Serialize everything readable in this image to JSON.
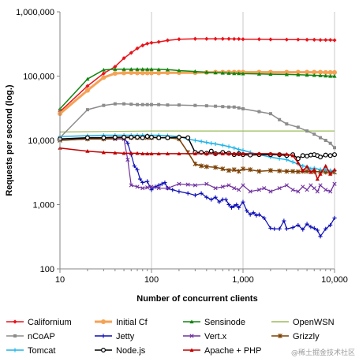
{
  "chart_data": {
    "type": "line",
    "title": "",
    "xlabel": "Number of concurrent clients",
    "ylabel": "Requests per second (log.)",
    "x_scale": "log",
    "y_scale": "log",
    "xlim": [
      10,
      10000
    ],
    "ylim": [
      100,
      1000000
    ],
    "x_ticks": [
      10,
      100,
      1000,
      10000
    ],
    "x_tick_labels": [
      "10",
      "100",
      "1,000",
      "10,000"
    ],
    "y_ticks": [
      100,
      1000,
      10000,
      100000,
      1000000
    ],
    "y_tick_labels": [
      "100",
      "1,000",
      "10,000",
      "100,000",
      "1,000,000"
    ],
    "grid": "vertical-major",
    "legend_position": "bottom",
    "watermark": "@稀土掘金技术社区",
    "series": [
      {
        "name": "Californium",
        "color": "#e8141b",
        "marker": "diamond",
        "width": 1.5,
        "x": [
          10,
          20,
          30,
          40,
          50,
          60,
          70,
          80,
          90,
          100,
          120,
          150,
          200,
          300,
          400,
          500,
          600,
          700,
          800,
          900,
          1000,
          1500,
          2000,
          3000,
          4000,
          5000,
          6000,
          7000,
          8000,
          9000,
          10000
        ],
        "y": [
          28000,
          70000,
          110000,
          140000,
          190000,
          230000,
          270000,
          300000,
          320000,
          330000,
          340000,
          360000,
          375000,
          380000,
          380000,
          380000,
          380000,
          380000,
          378000,
          378000,
          375000,
          375000,
          372000,
          370000,
          370000,
          368000,
          368000,
          365000,
          365000,
          365000,
          362000
        ]
      },
      {
        "name": "Initial Cf",
        "color": "#f5a255",
        "marker": "circle",
        "width": 3,
        "x": [
          10,
          20,
          30,
          40,
          50,
          60,
          70,
          80,
          90,
          100,
          120,
          150,
          200,
          300,
          400,
          500,
          600,
          700,
          800,
          900,
          1000,
          1500,
          2000,
          3000,
          4000,
          5000,
          6000,
          7000,
          8000,
          9000,
          10000
        ],
        "y": [
          26000,
          60000,
          95000,
          110000,
          112000,
          113000,
          112000,
          112000,
          112000,
          112000,
          112000,
          113000,
          113000,
          113000,
          114000,
          115000,
          115000,
          115000,
          115000,
          115000,
          115000,
          115000,
          115000,
          115000,
          115000,
          115000,
          115000,
          115000,
          114000,
          114000,
          114000
        ]
      },
      {
        "name": "Sensinode",
        "color": "#118511",
        "marker": "triangle",
        "width": 1.5,
        "x": [
          10,
          20,
          30,
          40,
          50,
          60,
          70,
          80,
          90,
          100,
          120,
          150,
          200,
          300,
          400,
          500,
          600,
          700,
          800,
          900,
          1000,
          1500,
          2000,
          3000,
          4000,
          5000,
          6000,
          7000,
          8000,
          9000,
          10000
        ],
        "y": [
          31000,
          90000,
          125000,
          128000,
          128000,
          128000,
          128000,
          128000,
          128000,
          128000,
          127000,
          126000,
          122000,
          118000,
          115000,
          113000,
          112000,
          111000,
          110000,
          110000,
          109000,
          108000,
          107000,
          106000,
          105000,
          104000,
          103000,
          102000,
          101000,
          100000,
          100000
        ]
      },
      {
        "name": "OpenWSN",
        "color": "#9bbb59",
        "marker": "none",
        "width": 1.2,
        "x": [
          10,
          100,
          1000,
          10000
        ],
        "y": [
          13500,
          14000,
          14000,
          14000
        ]
      },
      {
        "name": "nCoAP",
        "color": "#8c8c8c",
        "marker": "square",
        "width": 1.5,
        "x": [
          10,
          20,
          30,
          40,
          50,
          60,
          70,
          80,
          90,
          100,
          120,
          150,
          200,
          300,
          400,
          500,
          600,
          700,
          800,
          900,
          1000,
          1500,
          2000,
          2500,
          3000,
          4000,
          5000,
          6000,
          7000,
          8000,
          9000,
          10000
        ],
        "y": [
          11000,
          30000,
          35000,
          37000,
          37000,
          36500,
          36000,
          36000,
          36000,
          36000,
          36000,
          35500,
          35500,
          35000,
          34500,
          34000,
          33500,
          33000,
          33000,
          32000,
          31000,
          28000,
          26000,
          21000,
          18000,
          16000,
          14000,
          12500,
          11000,
          10000,
          9000,
          7700
        ]
      },
      {
        "name": "Jetty",
        "color": "#0b0bb5",
        "marker": "plus",
        "width": 1.2,
        "x": [
          10,
          20,
          30,
          40,
          50,
          55,
          60,
          65,
          70,
          75,
          80,
          90,
          100,
          110,
          120,
          130,
          140,
          150,
          170,
          200,
          250,
          300,
          350,
          400,
          450,
          500,
          550,
          600,
          650,
          700,
          750,
          800,
          850,
          900,
          1000,
          1100,
          1200,
          1300,
          1400,
          1500,
          1700,
          2000,
          2200,
          2500,
          2800,
          3000,
          3500,
          4000,
          4500,
          5000,
          5500,
          6000,
          6500,
          7000,
          8000,
          9000,
          10000
        ],
        "y": [
          10500,
          10800,
          11000,
          11000,
          11000,
          9000,
          6000,
          4000,
          3500,
          2500,
          2200,
          2300,
          1700,
          1900,
          2000,
          2100,
          2200,
          1800,
          1700,
          1600,
          1500,
          1400,
          1500,
          1300,
          1200,
          1300,
          1100,
          1200,
          1200,
          1000,
          900,
          950,
          1000,
          900,
          1100,
          800,
          700,
          750,
          680,
          700,
          620,
          430,
          420,
          420,
          560,
          420,
          440,
          480,
          410,
          500,
          450,
          430,
          400,
          320,
          420,
          480,
          620
        ]
      },
      {
        "name": "Vert.x",
        "color": "#7030a0",
        "marker": "x",
        "width": 1.2,
        "x": [
          10,
          20,
          30,
          40,
          50,
          55,
          60,
          70,
          80,
          90,
          100,
          120,
          150,
          200,
          250,
          300,
          400,
          500,
          600,
          700,
          800,
          900,
          1000,
          1200,
          1500,
          1700,
          2000,
          2500,
          3000,
          3500,
          4000,
          4500,
          5000,
          5500,
          6000,
          6500,
          7000,
          8000,
          9000,
          10000
        ],
        "y": [
          10000,
          10500,
          10500,
          10500,
          10500,
          5000,
          2000,
          1900,
          1800,
          1850,
          1900,
          1800,
          1800,
          2100,
          2050,
          2000,
          2100,
          1800,
          1900,
          2000,
          1800,
          1700,
          2000,
          1600,
          1700,
          1800,
          1600,
          1800,
          2000,
          1700,
          1600,
          1900,
          1700,
          2000,
          1800,
          1600,
          2000,
          1700,
          1600,
          2100
        ]
      },
      {
        "name": "Grizzly",
        "color": "#7b3f00",
        "marker": "star",
        "width": 1.5,
        "x": [
          10,
          20,
          30,
          40,
          50,
          60,
          70,
          80,
          90,
          100,
          120,
          150,
          200,
          250,
          300,
          350,
          400,
          500,
          600,
          700,
          800,
          900,
          1000,
          1200,
          1500,
          2000,
          2500,
          3000,
          3500,
          4000,
          4500,
          5000,
          6000,
          7000,
          8000,
          9000,
          10000
        ],
        "y": [
          10000,
          10500,
          10500,
          10800,
          11000,
          11000,
          11000,
          11000,
          11000,
          11000,
          11000,
          11000,
          10500,
          6500,
          4300,
          4000,
          3900,
          3800,
          3600,
          3400,
          3500,
          3300,
          3600,
          3500,
          3300,
          3400,
          3350,
          3300,
          3300,
          3250,
          3300,
          3300,
          3250,
          3250,
          3200,
          3200,
          3200
        ]
      },
      {
        "name": "Tomcat",
        "color": "#1fb4e8",
        "marker": "plus",
        "width": 1.5,
        "x": [
          10,
          20,
          30,
          40,
          50,
          60,
          70,
          80,
          90,
          100,
          120,
          150,
          200,
          250,
          300,
          350,
          400,
          450,
          500,
          600,
          700,
          800,
          900,
          1000,
          1200,
          1500,
          2000,
          2500,
          3000,
          3500,
          4000,
          4500,
          5000,
          5500,
          6000,
          7000,
          8000,
          9000,
          10000
        ],
        "y": [
          11500,
          11800,
          12000,
          12000,
          12000,
          12000,
          12000,
          12000,
          12000,
          12000,
          12000,
          11800,
          11500,
          10500,
          10000,
          9600,
          9300,
          9000,
          8800,
          8400,
          8000,
          7600,
          7200,
          7000,
          6500,
          6000,
          5500,
          5200,
          5000,
          4600,
          4300,
          4000,
          3900,
          3600,
          3700,
          3500,
          3500,
          3400,
          3400
        ]
      },
      {
        "name": "Node.js",
        "color": "#000000",
        "marker": "circle-open",
        "width": 1.5,
        "x": [
          10,
          20,
          30,
          40,
          50,
          60,
          70,
          80,
          90,
          100,
          120,
          150,
          200,
          250,
          300,
          350,
          400,
          450,
          500,
          600,
          700,
          800,
          900,
          1000,
          1200,
          1500,
          2000,
          2500,
          3000,
          3500,
          4000,
          4500,
          5000,
          5500,
          6000,
          6500,
          7000,
          8000,
          9000,
          10000
        ],
        "y": [
          10500,
          11000,
          11000,
          11200,
          11200,
          11200,
          11200,
          11000,
          11500,
          11200,
          11000,
          11000,
          11200,
          11000,
          6500,
          6500,
          6300,
          6800,
          6200,
          6500,
          6300,
          6000,
          6200,
          6000,
          5900,
          6000,
          6000,
          6000,
          5800,
          6000,
          5200,
          5800,
          5700,
          5900,
          6000,
          5800,
          5500,
          5900,
          5800,
          6000
        ]
      },
      {
        "name": "Apache + PHP",
        "color": "#c00000",
        "marker": "triangle",
        "width": 1.5,
        "x": [
          10,
          20,
          30,
          40,
          50,
          60,
          70,
          80,
          90,
          100,
          120,
          150,
          200,
          300,
          400,
          500,
          600,
          700,
          800,
          900,
          1000,
          1500,
          2000,
          2500,
          3000,
          3500,
          4000,
          4500,
          5000,
          5500,
          6000,
          6500,
          7000,
          8000,
          9000,
          10000
        ],
        "y": [
          7600,
          6800,
          6500,
          6400,
          6300,
          6300,
          6300,
          6200,
          6200,
          6200,
          6200,
          6200,
          6200,
          6200,
          6200,
          6200,
          6200,
          6200,
          6200,
          6200,
          6200,
          6200,
          6200,
          6100,
          6100,
          5800,
          4500,
          3400,
          3900,
          3200,
          3500,
          2500,
          3000,
          4000,
          3000,
          3500
        ]
      }
    ]
  }
}
